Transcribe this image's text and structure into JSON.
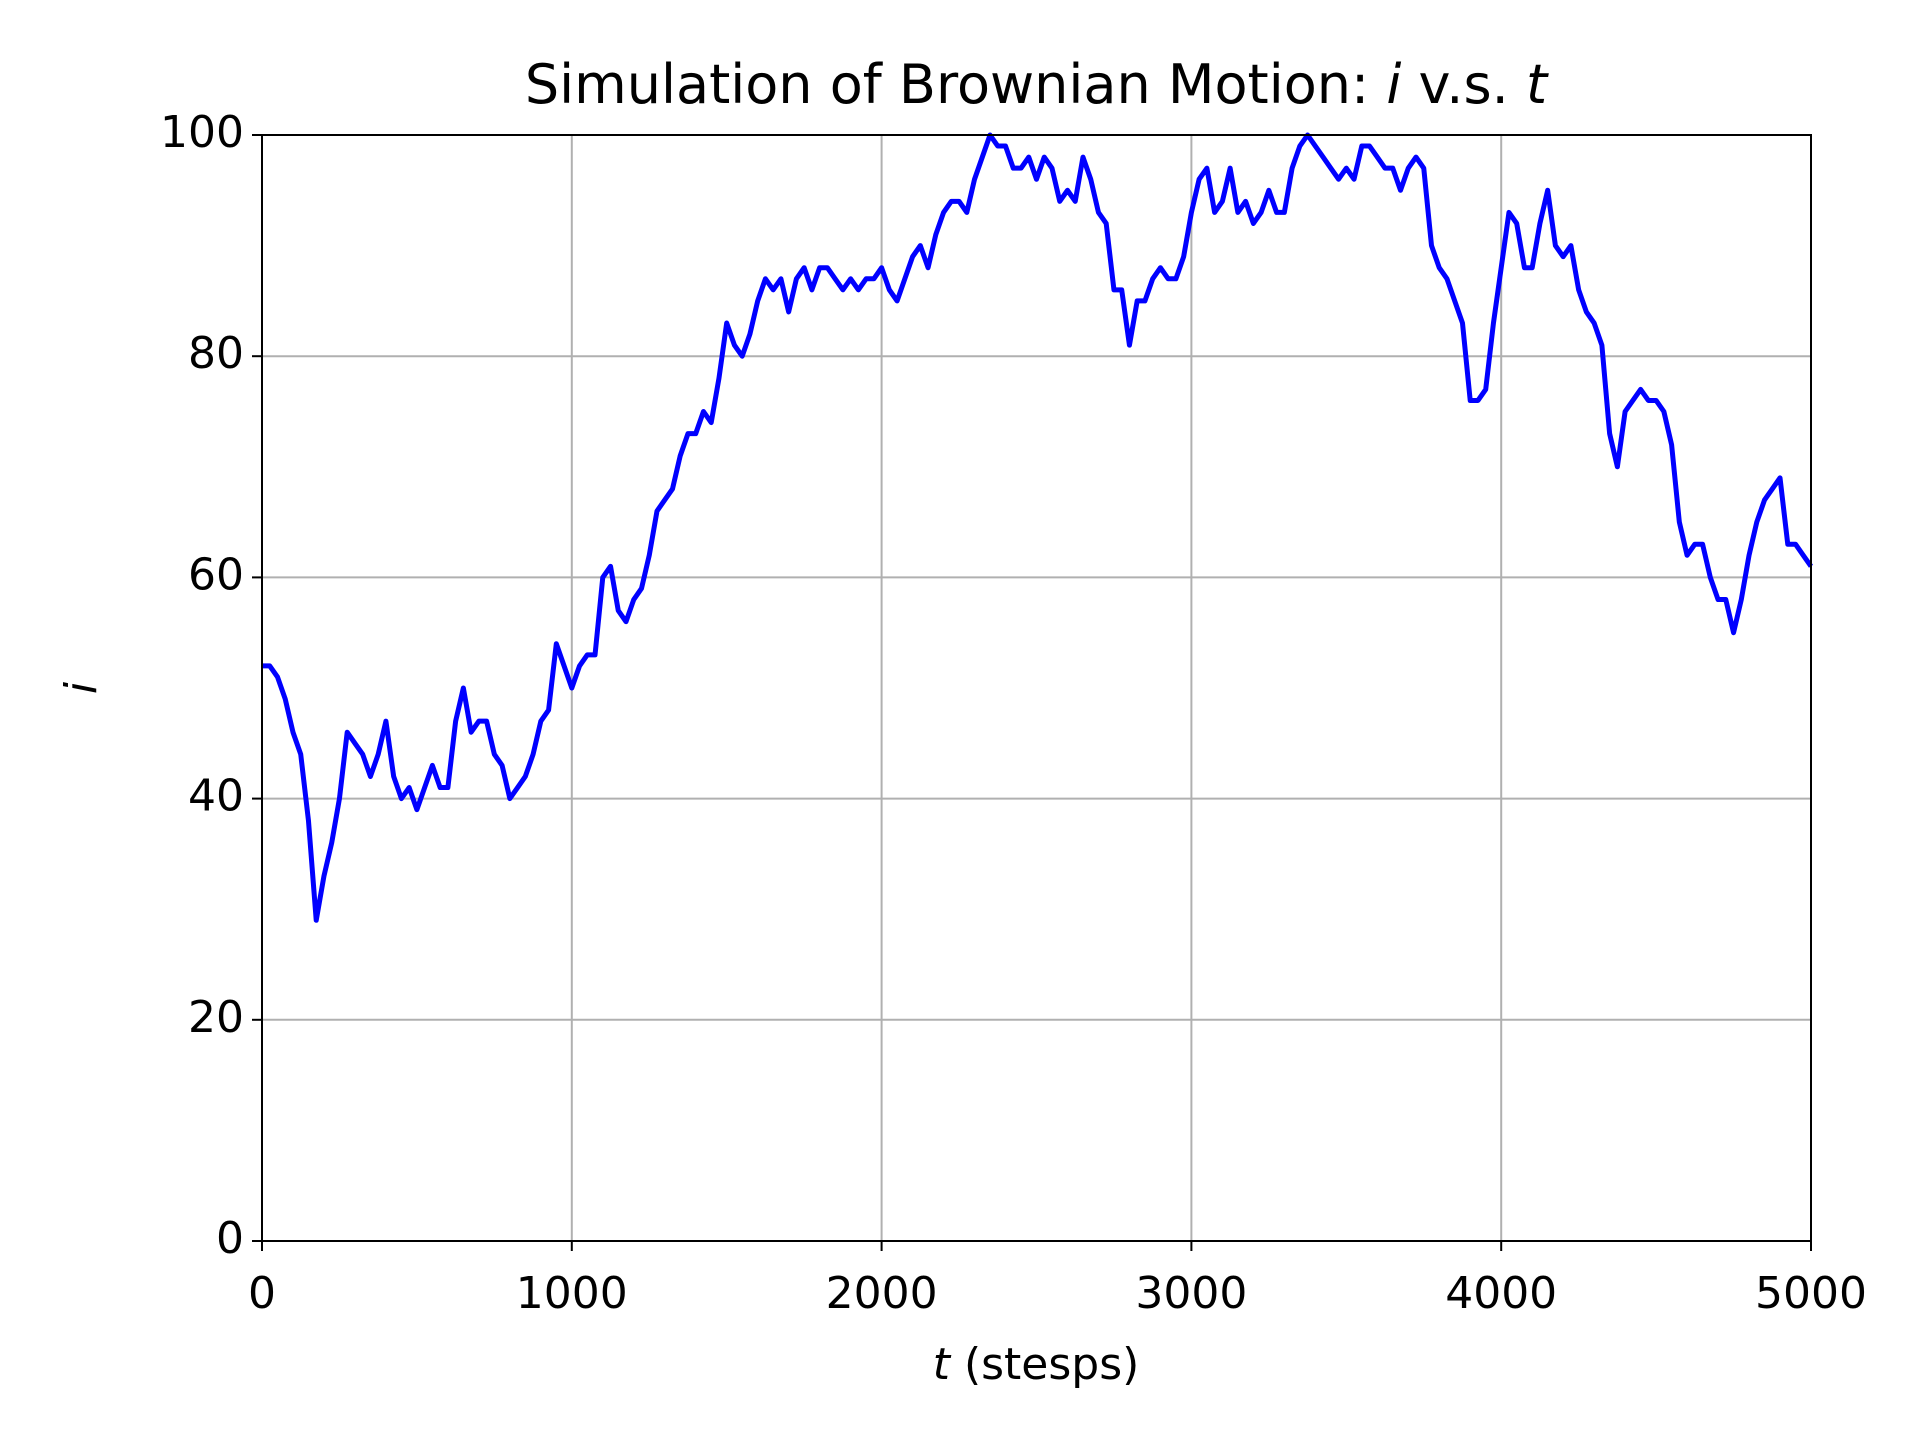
{
  "chart_data": {
    "type": "line",
    "title": "Simulation of Brownian Motion: i v.s. t",
    "xlabel": "t (stesps)",
    "ylabel": "i",
    "xlim": [
      0,
      5000
    ],
    "ylim": [
      0,
      100
    ],
    "xticks": [
      0,
      1000,
      2000,
      3000,
      4000,
      5000
    ],
    "yticks": [
      0,
      20,
      40,
      60,
      80,
      100
    ],
    "grid": true,
    "x": [
      0,
      25,
      50,
      75,
      100,
      125,
      150,
      175,
      200,
      225,
      250,
      275,
      300,
      325,
      350,
      375,
      400,
      425,
      450,
      475,
      500,
      525,
      550,
      575,
      600,
      625,
      650,
      675,
      700,
      725,
      750,
      775,
      800,
      825,
      850,
      875,
      900,
      925,
      950,
      975,
      1000,
      1025,
      1050,
      1075,
      1100,
      1125,
      1150,
      1175,
      1200,
      1225,
      1250,
      1275,
      1300,
      1325,
      1350,
      1375,
      1400,
      1425,
      1450,
      1475,
      1500,
      1525,
      1550,
      1575,
      1600,
      1625,
      1650,
      1675,
      1700,
      1725,
      1750,
      1775,
      1800,
      1825,
      1850,
      1875,
      1900,
      1925,
      1950,
      1975,
      2000,
      2025,
      2050,
      2075,
      2100,
      2125,
      2150,
      2175,
      2200,
      2225,
      2250,
      2275,
      2300,
      2325,
      2350,
      2375,
      2400,
      2425,
      2450,
      2475,
      2500,
      2525,
      2550,
      2575,
      2600,
      2625,
      2650,
      2675,
      2700,
      2725,
      2750,
      2775,
      2800,
      2825,
      2850,
      2875,
      2900,
      2925,
      2950,
      2975,
      3000,
      3025,
      3050,
      3075,
      3100,
      3125,
      3150,
      3175,
      3200,
      3225,
      3250,
      3275,
      3300,
      3325,
      3350,
      3375,
      3400,
      3425,
      3450,
      3475,
      3500,
      3525,
      3550,
      3575,
      3600,
      3625,
      3650,
      3675,
      3700,
      3725,
      3750,
      3775,
      3800,
      3825,
      3850,
      3875,
      3900,
      3925,
      3950,
      3975,
      4000,
      4025,
      4050,
      4075,
      4100,
      4125,
      4150,
      4175,
      4200,
      4225,
      4250,
      4275,
      4300,
      4325,
      4350,
      4375,
      4400,
      4425,
      4450,
      4475,
      4500,
      4525,
      4550,
      4575,
      4600,
      4625,
      4650,
      4675,
      4700,
      4725,
      4750,
      4775,
      4800,
      4825,
      4850,
      4875,
      4900,
      4925,
      4950,
      4975,
      5000
    ],
    "series": [
      {
        "color": "#0000ff",
        "values": [
          52,
          52,
          51,
          49,
          46,
          44,
          38,
          29,
          33,
          36,
          40,
          46,
          45,
          44,
          42,
          44,
          47,
          42,
          40,
          41,
          39,
          41,
          43,
          41,
          41,
          47,
          50,
          46,
          47,
          47,
          44,
          43,
          40,
          41,
          42,
          44,
          47,
          48,
          54,
          52,
          50,
          52,
          53,
          53,
          60,
          61,
          57,
          56,
          58,
          59,
          62,
          66,
          67,
          68,
          71,
          73,
          73,
          75,
          74,
          78,
          83,
          81,
          80,
          82,
          85,
          87,
          86,
          87,
          84,
          87,
          88,
          86,
          88,
          88,
          87,
          86,
          87,
          86,
          87,
          87,
          88,
          86,
          85,
          87,
          89,
          90,
          88,
          91,
          93,
          94,
          94,
          93,
          96,
          98,
          100,
          99,
          99,
          97,
          97,
          98,
          96,
          98,
          97,
          94,
          95,
          94,
          98,
          96,
          93,
          92,
          86,
          86,
          81,
          85,
          85,
          87,
          88,
          87,
          87,
          89,
          93,
          96,
          97,
          93,
          94,
          97,
          93,
          94,
          92,
          93,
          95,
          93,
          93,
          97,
          99,
          100,
          99,
          98,
          97,
          96,
          97,
          96,
          99,
          99,
          98,
          97,
          97,
          95,
          97,
          98,
          97,
          90,
          88,
          87,
          85,
          83,
          76,
          76,
          77,
          83,
          88,
          93,
          92,
          88,
          88,
          92,
          95,
          90,
          89,
          90,
          86,
          84,
          83,
          81,
          73,
          70,
          75,
          76,
          77,
          76,
          76,
          75,
          72,
          65,
          62,
          63,
          63,
          60,
          58,
          58,
          55,
          58,
          62,
          65,
          67,
          68,
          69,
          63,
          63,
          62,
          61
        ]
      }
    ]
  }
}
